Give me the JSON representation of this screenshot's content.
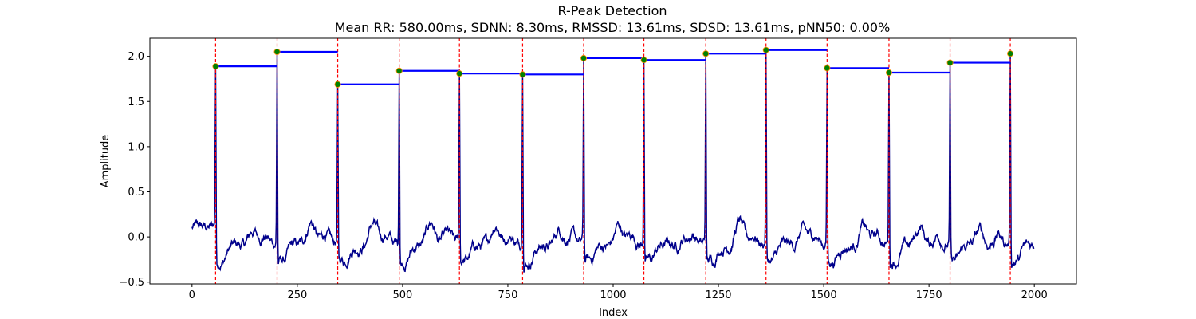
{
  "chart_data": {
    "type": "line",
    "title": "R-Peak Detection",
    "subtitle": "Mean RR: 580.00ms, SDNN: 8.30ms, RMSSD: 13.61ms, SDSD: 13.61ms, pNN50: 0.00%",
    "xlabel": "Index",
    "ylabel": "Amplitude",
    "xlim": [
      -100,
      2100
    ],
    "ylim": [
      -0.52,
      2.2
    ],
    "xticks": [
      0,
      250,
      500,
      750,
      1000,
      1250,
      1500,
      1750,
      2000
    ],
    "yticks": [
      -0.5,
      0.0,
      0.5,
      1.0,
      1.5,
      2.0
    ],
    "ytick_labels": [
      "−0.5",
      "0.0",
      "0.5",
      "1.0",
      "1.5",
      "2.0"
    ],
    "grid": false,
    "signal_points": 2000,
    "colors": {
      "signal": "#00008b",
      "peak_line": "#ff0000",
      "peak_marker": "#008000",
      "rr_bar": "#0000ff"
    },
    "peaks": [
      {
        "x": 56,
        "y": 1.89
      },
      {
        "x": 202,
        "y": 2.05
      },
      {
        "x": 346,
        "y": 1.69
      },
      {
        "x": 492,
        "y": 1.84
      },
      {
        "x": 635,
        "y": 1.81
      },
      {
        "x": 785,
        "y": 1.8
      },
      {
        "x": 930,
        "y": 1.98
      },
      {
        "x": 1073,
        "y": 1.96
      },
      {
        "x": 1220,
        "y": 2.03
      },
      {
        "x": 1363,
        "y": 2.07
      },
      {
        "x": 1508,
        "y": 1.87
      },
      {
        "x": 1655,
        "y": 1.82
      },
      {
        "x": 1800,
        "y": 1.93
      },
      {
        "x": 1943,
        "y": 2.03
      }
    ],
    "rr_segments": [
      {
        "x0": 56,
        "x1": 202,
        "y": 1.89
      },
      {
        "x0": 202,
        "x1": 346,
        "y": 2.05
      },
      {
        "x0": 346,
        "x1": 492,
        "y": 1.69
      },
      {
        "x0": 492,
        "x1": 635,
        "y": 1.84
      },
      {
        "x0": 635,
        "x1": 785,
        "y": 1.81
      },
      {
        "x0": 785,
        "x1": 930,
        "y": 1.8
      },
      {
        "x0": 930,
        "x1": 1073,
        "y": 1.98
      },
      {
        "x0": 1073,
        "x1": 1220,
        "y": 1.96
      },
      {
        "x0": 1220,
        "x1": 1363,
        "y": 2.03
      },
      {
        "x0": 1363,
        "x1": 1508,
        "y": 2.07
      },
      {
        "x0": 1508,
        "x1": 1655,
        "y": 1.87
      },
      {
        "x0": 1655,
        "x1": 1800,
        "y": 1.82
      },
      {
        "x0": 1800,
        "x1": 1943,
        "y": 1.93
      }
    ]
  }
}
